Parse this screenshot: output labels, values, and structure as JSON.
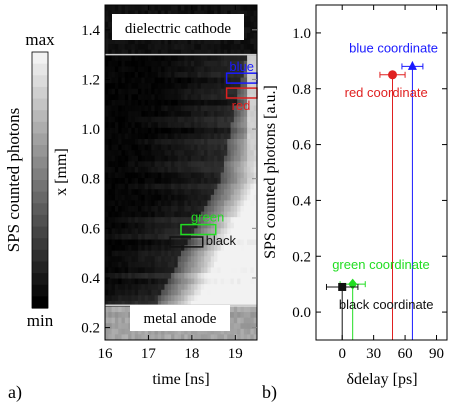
{
  "panel_a": {
    "label": "a)",
    "colorbar": {
      "title": "SPS counted photons",
      "max_label": "max",
      "min_label": "min"
    },
    "chart_data": {
      "type": "heatmap",
      "xlabel": "time [ns]",
      "ylabel": "x [mm]",
      "xlim": [
        16,
        19.5
      ],
      "ylim": [
        0.15,
        1.5
      ],
      "xticks": [
        "16",
        "17",
        "18",
        "19"
      ],
      "yticks": [
        "0.2",
        "0.4",
        "0.6",
        "0.8",
        "1.0",
        "1.2",
        "1.4"
      ],
      "xtick_values": [
        16,
        17,
        18,
        19
      ],
      "ytick_values": [
        0.2,
        0.4,
        0.6,
        0.8,
        1.0,
        1.2,
        1.4
      ],
      "cathode_x": 1.3,
      "anode_x": 0.29,
      "region_labels": {
        "cathode": "dielectric cathode",
        "anode": "metal anode"
      },
      "boxes": [
        {
          "name": "blue",
          "color": "#1a1aff",
          "t": [
            18.8,
            19.5
          ],
          "x": [
            1.185,
            1.225
          ]
        },
        {
          "name": "red",
          "color": "#e02020",
          "t": [
            18.8,
            19.5
          ],
          "x": [
            1.125,
            1.165
          ]
        },
        {
          "name": "green",
          "color": "#22dd22",
          "t": [
            17.75,
            18.55
          ],
          "x": [
            0.575,
            0.615
          ]
        },
        {
          "name": "black",
          "color": "#111111",
          "t": [
            17.5,
            18.25
          ],
          "x": [
            0.525,
            0.565
          ]
        }
      ]
    }
  },
  "panel_b": {
    "label": "b)",
    "chart_data": {
      "type": "scatter",
      "xlabel": "δdelay [ps]",
      "ylabel": "SPS counted photons [a.u.]",
      "xlim": [
        -25,
        100
      ],
      "ylim": [
        -0.1,
        1.1
      ],
      "xticks": [
        "0",
        "30",
        "60",
        "90"
      ],
      "yticks": [
        "0.0",
        "0.2",
        "0.4",
        "0.6",
        "0.8",
        "1.0"
      ],
      "xtick_values": [
        0,
        30,
        60,
        90
      ],
      "ytick_values": [
        0,
        0.2,
        0.4,
        0.6,
        0.8,
        1.0
      ],
      "points": [
        {
          "name": "blue coordinate",
          "x": 67,
          "y": 0.88,
          "xerr": 10,
          "marker": "triangle",
          "color": "#1a1aff"
        },
        {
          "name": "red coordinate",
          "x": 48,
          "y": 0.85,
          "xerr": 12,
          "marker": "circle",
          "color": "#e02020"
        },
        {
          "name": "green coordinate",
          "x": 10,
          "y": 0.1,
          "xerr": 12,
          "marker": "diamond",
          "color": "#22dd22"
        },
        {
          "name": "black coordinate",
          "x": 0,
          "y": 0.09,
          "xerr": 15,
          "marker": "square",
          "color": "#111111"
        }
      ]
    }
  }
}
